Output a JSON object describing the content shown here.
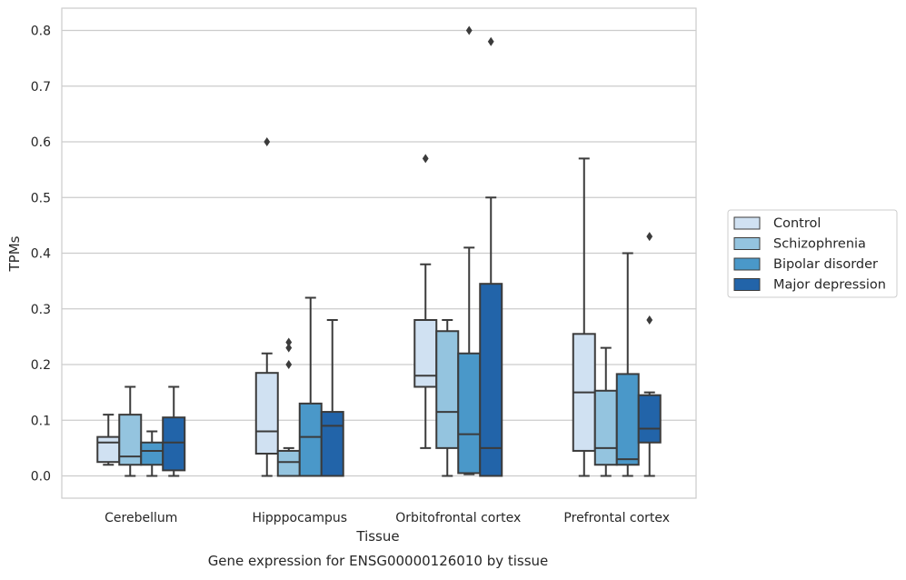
{
  "caption": "Gene expression for ENSG00000126010 by tissue",
  "chart_data": {
    "type": "box",
    "xlabel": "Tissue",
    "ylabel": "TPMs",
    "ylim": [
      -0.04,
      0.84
    ],
    "yticks": [
      "0.0",
      "0.1",
      "0.2",
      "0.3",
      "0.4",
      "0.5",
      "0.6",
      "0.7",
      "0.8"
    ],
    "grid": "horizontal",
    "legend_position": "right",
    "categories": [
      "Cerebellum",
      "Hipppocampus",
      "Orbitofrontal cortex",
      "Prefrontal cortex"
    ],
    "series": [
      {
        "name": "Control",
        "color": "#d0e1f2",
        "boxes": [
          {
            "whisker_low": 0.02,
            "q1": 0.025,
            "median": 0.06,
            "q3": 0.07,
            "whisker_high": 0.11,
            "outliers": []
          },
          {
            "whisker_low": 0.0,
            "q1": 0.04,
            "median": 0.08,
            "q3": 0.185,
            "whisker_high": 0.22,
            "outliers": [
              0.6
            ]
          },
          {
            "whisker_low": 0.05,
            "q1": 0.16,
            "median": 0.18,
            "q3": 0.28,
            "whisker_high": 0.38,
            "outliers": [
              0.57
            ]
          },
          {
            "whisker_low": 0.0,
            "q1": 0.045,
            "median": 0.15,
            "q3": 0.255,
            "whisker_high": 0.57,
            "outliers": []
          }
        ]
      },
      {
        "name": "Schizophrenia",
        "color": "#94c4df",
        "boxes": [
          {
            "whisker_low": 0.0,
            "q1": 0.02,
            "median": 0.035,
            "q3": 0.11,
            "whisker_high": 0.16,
            "outliers": []
          },
          {
            "whisker_low": 0.0,
            "q1": 0.0,
            "median": 0.025,
            "q3": 0.045,
            "whisker_high": 0.05,
            "outliers": [
              0.2,
              0.23,
              0.24
            ]
          },
          {
            "whisker_low": 0.0,
            "q1": 0.05,
            "median": 0.115,
            "q3": 0.26,
            "whisker_high": 0.28,
            "outliers": []
          },
          {
            "whisker_low": 0.0,
            "q1": 0.02,
            "median": 0.05,
            "q3": 0.153,
            "whisker_high": 0.23,
            "outliers": []
          }
        ]
      },
      {
        "name": "Bipolar disorder",
        "color": "#4a98c9",
        "boxes": [
          {
            "whisker_low": 0.0,
            "q1": 0.02,
            "median": 0.045,
            "q3": 0.06,
            "whisker_high": 0.08,
            "outliers": []
          },
          {
            "whisker_low": 0.0,
            "q1": 0.0,
            "median": 0.07,
            "q3": 0.13,
            "whisker_high": 0.32,
            "outliers": []
          },
          {
            "whisker_low": 0.003,
            "q1": 0.005,
            "median": 0.075,
            "q3": 0.22,
            "whisker_high": 0.41,
            "outliers": [
              0.8
            ]
          },
          {
            "whisker_low": 0.0,
            "q1": 0.02,
            "median": 0.03,
            "q3": 0.183,
            "whisker_high": 0.4,
            "outliers": []
          }
        ]
      },
      {
        "name": "Major depression",
        "color": "#2264a9",
        "boxes": [
          {
            "whisker_low": 0.0,
            "q1": 0.01,
            "median": 0.06,
            "q3": 0.105,
            "whisker_high": 0.16,
            "outliers": []
          },
          {
            "whisker_low": 0.0,
            "q1": 0.0,
            "median": 0.09,
            "q3": 0.115,
            "whisker_high": 0.28,
            "outliers": []
          },
          {
            "whisker_low": 0.0,
            "q1": 0.0,
            "median": 0.05,
            "q3": 0.345,
            "whisker_high": 0.5,
            "outliers": [
              0.78
            ]
          },
          {
            "whisker_low": 0.0,
            "q1": 0.06,
            "median": 0.085,
            "q3": 0.145,
            "whisker_high": 0.15,
            "outliers": [
              0.28,
              0.43
            ]
          }
        ]
      }
    ]
  }
}
